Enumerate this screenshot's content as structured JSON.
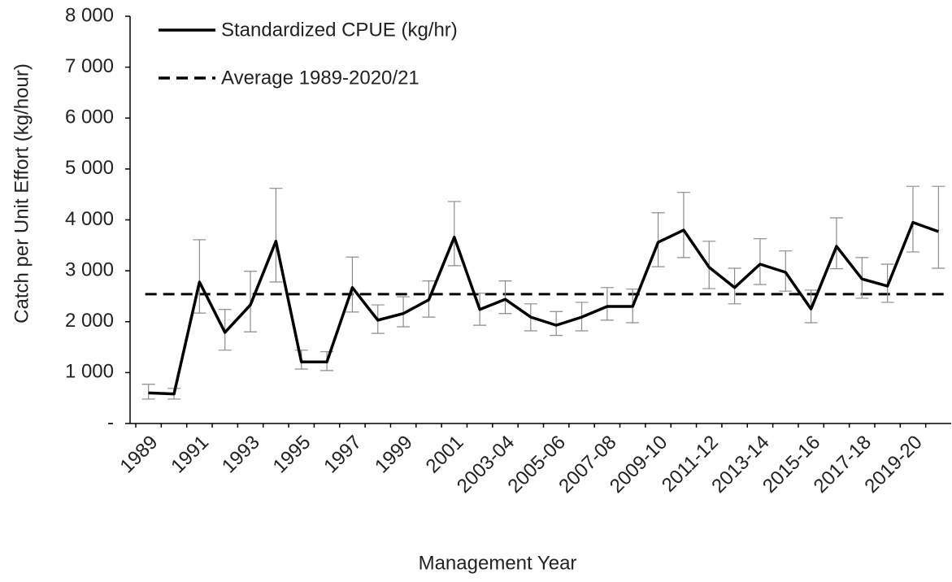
{
  "chart_data": {
    "type": "line",
    "x_label": "Management Year",
    "y_label": "Catch per Unit Effort (kg/hour)",
    "categories": [
      "1989",
      null,
      "1991",
      null,
      "1993",
      null,
      "1995",
      null,
      "1997",
      null,
      "1999",
      null,
      "2001",
      null,
      "2003-04",
      null,
      "2005-06",
      null,
      "2007-08",
      null,
      "2009-10",
      null,
      "2011-12",
      null,
      "2013-14",
      null,
      "2015-16",
      null,
      "2017-18",
      null,
      "2019-20",
      null
    ],
    "series": [
      {
        "name": "Standardized CPUE (kg/hr)",
        "color": "#000000",
        "values": [
          600,
          580,
          2780,
          1790,
          2330,
          3580,
          1210,
          1210,
          2670,
          2030,
          2160,
          2430,
          3660,
          2240,
          2440,
          2090,
          1930,
          2090,
          2300,
          2300,
          3560,
          3800,
          3070,
          2670,
          3130,
          2970,
          2250,
          3480,
          2840,
          2700,
          3950,
          3770
        ],
        "error_high": [
          770,
          690,
          3610,
          2240,
          2990,
          4620,
          1440,
          1410,
          3270,
          2330,
          2490,
          2800,
          4360,
          2560,
          2800,
          2350,
          2200,
          2380,
          2670,
          2640,
          4140,
          4540,
          3580,
          3050,
          3630,
          3390,
          2620,
          4040,
          3260,
          3130,
          4660,
          4660
        ],
        "error_low": [
          480,
          480,
          2170,
          1440,
          1800,
          2780,
          1070,
          1040,
          2190,
          1770,
          1900,
          2090,
          3100,
          1930,
          2160,
          1820,
          1730,
          1820,
          2030,
          1980,
          3080,
          3260,
          2650,
          2350,
          2730,
          2600,
          1980,
          3040,
          2460,
          2380,
          3370,
          3050
        ]
      }
    ],
    "reference_line": {
      "name": "Average 1989-2020/21",
      "value": 2540,
      "color": "#000000",
      "dashed": true
    },
    "error_color": "#8c8c8c",
    "ylim": [
      0,
      8000
    ],
    "yticks": [
      {
        "value": 0,
        "label": "-"
      },
      {
        "value": 1000,
        "label": "1 000"
      },
      {
        "value": 2000,
        "label": "2 000"
      },
      {
        "value": 3000,
        "label": "3 000"
      },
      {
        "value": 4000,
        "label": "4 000"
      },
      {
        "value": 5000,
        "label": "5 000"
      },
      {
        "value": 6000,
        "label": "6 000"
      },
      {
        "value": 7000,
        "label": "7 000"
      },
      {
        "value": 8000,
        "label": "8 000"
      }
    ],
    "grid": false,
    "legend": "top-left"
  }
}
